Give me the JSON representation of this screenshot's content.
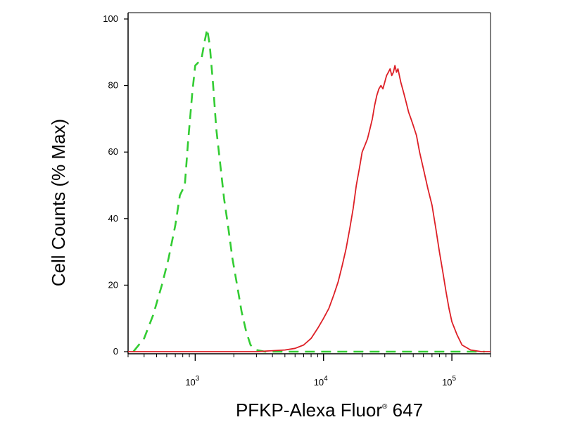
{
  "chart_data": {
    "type": "line",
    "xlabel": "PFKP-Alexa Fluor® 647",
    "ylabel": "Cell Counts (% Max)",
    "xscale": "log",
    "xlim": [
      300,
      200000
    ],
    "ylim": [
      0,
      105
    ],
    "x_ticks": [
      {
        "base": "10",
        "exp": "3",
        "value": 1000
      },
      {
        "base": "10",
        "exp": "4",
        "value": 10000
      },
      {
        "base": "10",
        "exp": "5",
        "value": 100000
      }
    ],
    "y_ticks": [
      "0",
      "20",
      "40",
      "60",
      "80",
      "100"
    ],
    "grid": false,
    "legend": "none",
    "series": [
      {
        "style": "dashed",
        "color": "#33cc33",
        "x": [
          330,
          400,
          470,
          550,
          620,
          700,
          760,
          830,
          880,
          950,
          1000,
          1060,
          1120,
          1180,
          1240,
          1300,
          1380,
          1460,
          1550,
          1680,
          1800,
          1950,
          2120,
          2300,
          2500,
          2700,
          3000,
          3500,
          5000,
          10000,
          30000,
          100000,
          180000
        ],
        "y": [
          0,
          4,
          11,
          20,
          28,
          38,
          47,
          50,
          63,
          78,
          86,
          87,
          88,
          93,
          97,
          92,
          80,
          67,
          58,
          46,
          38,
          28,
          20,
          12,
          6,
          2,
          0.5,
          0,
          0,
          0,
          0,
          0,
          0
        ]
      },
      {
        "style": "solid",
        "color": "#dd1f26",
        "x": [
          300,
          3000,
          5000,
          6000,
          7000,
          8000,
          9000,
          10000,
          11000,
          12000,
          13000,
          14000,
          15000,
          16000,
          17000,
          18000,
          19000,
          20000,
          21000,
          22000,
          23000,
          24000,
          25000,
          26000,
          27000,
          28000,
          29000,
          30000,
          31000,
          32000,
          33000,
          34000,
          35000,
          36000,
          37000,
          38000,
          39000,
          40000,
          42000,
          44000,
          46000,
          48000,
          50000,
          53000,
          56000,
          60000,
          65000,
          70000,
          75000,
          80000,
          85000,
          90000,
          95000,
          100000,
          110000,
          120000,
          140000,
          170000,
          200000
        ],
        "y": [
          0,
          0,
          0.5,
          1,
          2,
          4,
          7,
          10,
          13,
          17,
          21,
          26,
          31,
          37,
          43,
          50,
          55,
          60,
          62,
          64,
          67,
          70,
          74,
          77,
          79,
          80,
          79,
          81,
          83,
          84,
          85,
          83,
          84,
          86,
          84,
          85,
          83,
          81,
          78,
          75,
          72,
          70,
          68,
          65,
          60,
          55,
          49,
          44,
          37,
          30,
          24,
          18,
          13,
          9,
          5,
          2,
          0.5,
          0,
          0
        ]
      }
    ]
  }
}
